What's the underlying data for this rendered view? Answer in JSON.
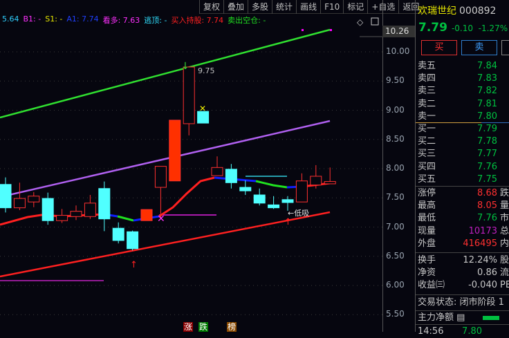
{
  "toolbar": [
    "复权",
    "叠加",
    "多股",
    "统计",
    "画线",
    "F10",
    "标记",
    "+自选",
    "返回"
  ],
  "indicators": [
    {
      "text": "5.64",
      "color": "#30d0ff"
    },
    {
      "text": "B1: -",
      "color": "#ff30ff"
    },
    {
      "text": "S1: -",
      "color": "#e8e800"
    },
    {
      "text": "A1: 7.74",
      "color": "#2040ff"
    },
    {
      "text": "看多: 7.63",
      "color": "#ff30ff"
    },
    {
      "text": "逃顶: -",
      "color": "#30e0ff"
    },
    {
      "text": "买入持股: 7.74",
      "color": "#ff2020"
    },
    {
      "text": "卖出空仓: -",
      "color": "#20e020"
    }
  ],
  "axis": {
    "current": "10.26",
    "ticks": [
      "10.00",
      "9.50",
      "9.00",
      "8.50",
      "8.00",
      "7.50",
      "7.00",
      "6.50",
      "6.00",
      "5.50"
    ]
  },
  "chart_data": {
    "type": "candlestick",
    "ylim": [
      5.4,
      10.4
    ],
    "candles": [
      [
        7.73,
        7.85,
        7.25,
        7.33
      ],
      [
        7.33,
        7.76,
        7.29,
        7.49
      ],
      [
        7.43,
        7.6,
        7.34,
        7.53
      ],
      [
        7.49,
        7.59,
        7.04,
        7.11
      ],
      [
        7.11,
        7.31,
        7.07,
        7.2
      ],
      [
        7.18,
        7.37,
        7.12,
        7.27
      ],
      [
        7.18,
        7.55,
        7.14,
        7.41
      ],
      [
        7.66,
        7.78,
        6.93,
        7.14
      ],
      [
        6.98,
        7.08,
        6.72,
        6.77
      ],
      [
        6.92,
        6.94,
        6.6,
        6.63
      ],
      [
        7.11,
        7.3,
        7.11,
        7.3
      ],
      [
        7.68,
        8.04,
        7.16,
        8.04
      ],
      [
        7.79,
        8.83,
        7.79,
        8.83
      ],
      [
        8.77,
        9.75,
        8.57,
        9.74
      ],
      [
        8.98,
        8.98,
        8.78,
        8.78
      ],
      [
        7.88,
        8.21,
        7.88,
        8.02
      ],
      [
        7.99,
        8.08,
        7.66,
        7.76
      ],
      [
        7.68,
        7.8,
        7.55,
        7.62
      ],
      [
        7.55,
        7.66,
        7.37,
        7.41
      ],
      [
        7.38,
        7.53,
        7.31,
        7.33
      ],
      [
        7.47,
        7.53,
        7.28,
        7.42
      ],
      [
        7.43,
        7.92,
        7.43,
        7.79
      ],
      [
        7.72,
        8.06,
        7.66,
        7.87
      ],
      [
        7.74,
        8.02,
        7.74,
        7.78
      ]
    ],
    "annotations": {
      "high_label": "9.75",
      "low_label": "←低吸"
    }
  },
  "stock": {
    "name": "欢瑞世纪",
    "code": "000892",
    "price": "7.79",
    "change": "-0.10",
    "pct": "-1.27%"
  },
  "buttons": {
    "buy": "买",
    "sell": "卖"
  },
  "asks": [
    {
      "l": "卖五",
      "v": "7.84"
    },
    {
      "l": "卖四",
      "v": "7.83"
    },
    {
      "l": "卖三",
      "v": "7.82"
    },
    {
      "l": "卖二",
      "v": "7.81"
    },
    {
      "l": "卖一",
      "v": "7.80"
    }
  ],
  "bids": [
    {
      "l": "买一",
      "v": "7.79"
    },
    {
      "l": "买二",
      "v": "7.78"
    },
    {
      "l": "买三",
      "v": "7.77"
    },
    {
      "l": "买四",
      "v": "7.76"
    },
    {
      "l": "买五",
      "v": "7.75"
    }
  ],
  "stats1": [
    {
      "l": "涨停",
      "v": "8.68",
      "c": "#ff3030",
      "t": "跌"
    },
    {
      "l": "最高",
      "v": "8.05",
      "c": "#ff3030",
      "t": "量"
    },
    {
      "l": "最低",
      "v": "7.76",
      "c": "#00c040",
      "t": "市"
    },
    {
      "l": "现量",
      "v": "10173",
      "c": "#c020c0",
      "t": "总"
    },
    {
      "l": "外盘",
      "v": "416495",
      "c": "#ff3030",
      "t": "内"
    }
  ],
  "stats2": [
    {
      "l": "换手",
      "v": "12.24%",
      "c": "#c8c8c8",
      "t": "股"
    },
    {
      "l": "净资",
      "v": "0.86",
      "c": "#c8c8c8",
      "t": "流"
    },
    {
      "l": "收益㈢",
      "v": "-0.040",
      "c": "#c8c8c8",
      "t": "PE"
    }
  ],
  "status": "交易状态: 闭市阶段 1",
  "flow": "主力净额",
  "tick": {
    "time": "14:56",
    "price": "7.80"
  },
  "tags": [
    "涨",
    "跌",
    "榜"
  ]
}
